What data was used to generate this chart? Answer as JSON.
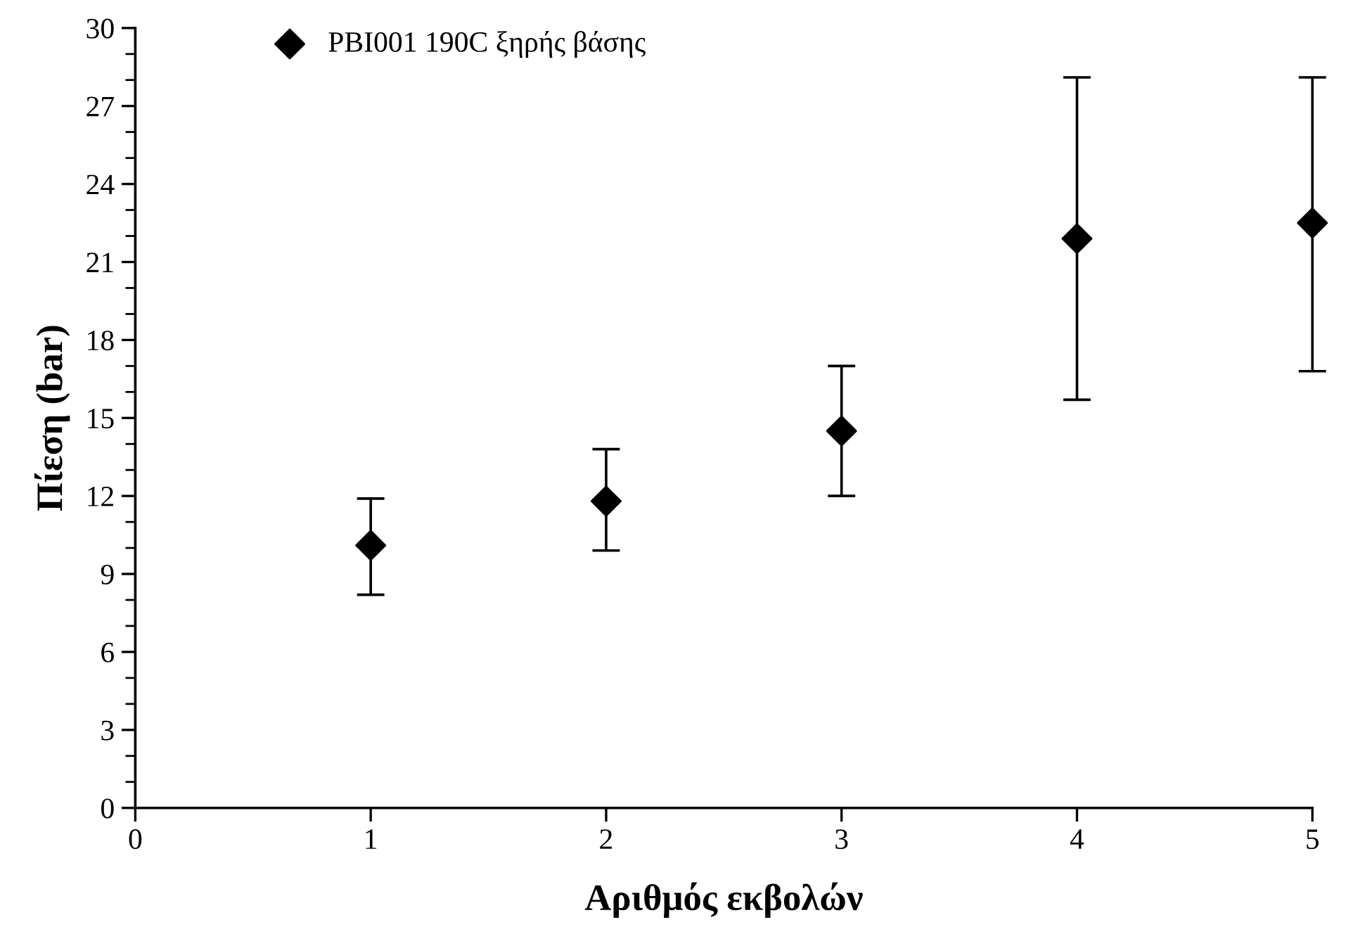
{
  "chart_data": {
    "type": "scatter",
    "xlabel": "Αριθμός εκβολών",
    "ylabel": "Πίεση (bar)",
    "x": [
      1,
      2,
      3,
      4,
      5
    ],
    "series": [
      {
        "name": "PBI001 190C ξηρής βάσης",
        "color": "#000000",
        "values": [
          10.1,
          11.8,
          14.5,
          21.9,
          22.5
        ],
        "errors": [
          [
            8.2,
            11.9
          ],
          [
            9.9,
            13.8
          ],
          [
            12.0,
            17.0
          ],
          [
            15.7,
            28.1
          ],
          [
            16.8,
            28.1
          ]
        ]
      }
    ],
    "marker": "diamond",
    "legend": "top",
    "grid": false,
    "xlim": [
      0,
      5
    ],
    "xticks": [
      0,
      1,
      2,
      3,
      4,
      5
    ],
    "ylim": [
      0,
      30
    ],
    "yticks": [
      0,
      3,
      6,
      9,
      12,
      15,
      18,
      21,
      24,
      27,
      30
    ]
  }
}
